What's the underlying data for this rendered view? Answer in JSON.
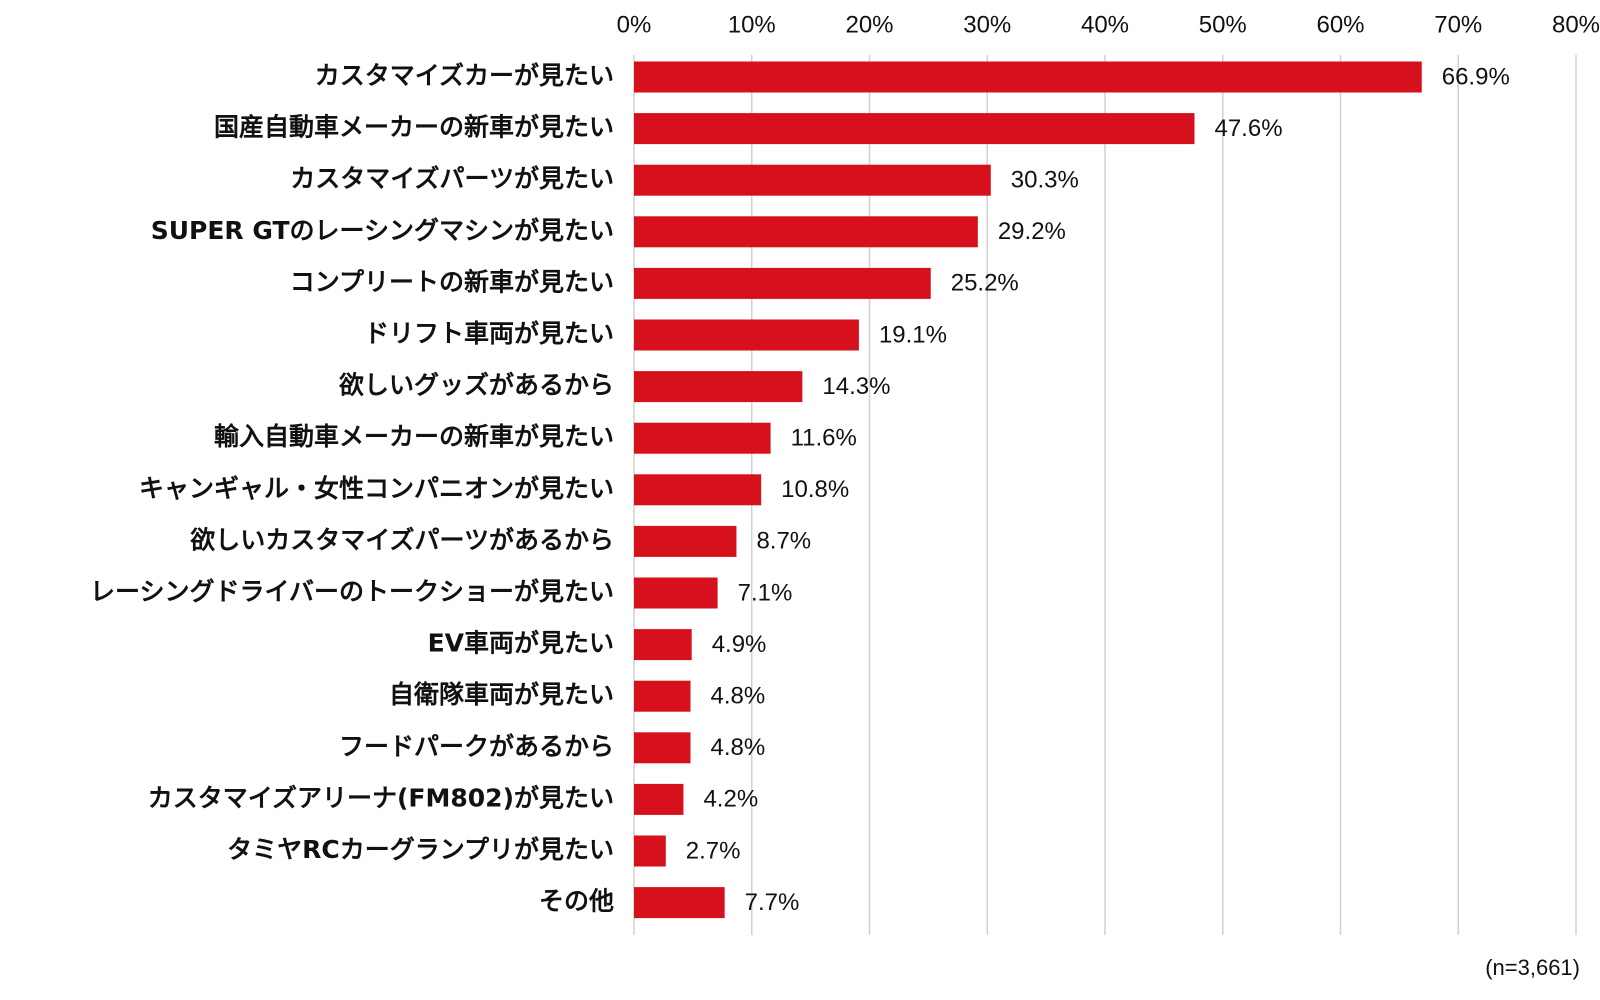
{
  "chart_data": {
    "type": "bar",
    "orientation": "horizontal",
    "title": "",
    "xlabel": "",
    "ylabel": "",
    "categories": [
      "カスタマイズカーが見たい",
      "国産自動車メーカーの新車が見たい",
      "カスタマイズパーツが見たい",
      "SUPER GTのレーシングマシンが見たい",
      "コンプリートの新車が見たい",
      "ドリフト車両が見たい",
      "欲しいグッズがあるから",
      "輸入自動車メーカーの新車が見たい",
      "キャンギャル・女性コンパニオンが見たい",
      "欲しいカスタマイズパーツがあるから",
      "レーシングドライバーのトークショーが見たい",
      "EV車両が見たい",
      "自衛隊車両が見たい",
      "フードパークがあるから",
      "カスタマイズアリーナ(FM802)が見たい",
      "タミヤRCカーグランプリが見たい",
      "その他"
    ],
    "values": [
      66.9,
      47.6,
      30.3,
      29.2,
      25.2,
      19.1,
      14.3,
      11.6,
      10.8,
      8.7,
      7.1,
      4.9,
      4.8,
      4.8,
      4.2,
      2.7,
      7.7
    ],
    "value_labels": [
      "66.9%",
      "47.6%",
      "30.3%",
      "29.2%",
      "25.2%",
      "19.1%",
      "14.3%",
      "11.6%",
      "10.8%",
      "8.7%",
      "7.1%",
      "4.9%",
      "4.8%",
      "4.8%",
      "4.2%",
      "2.7%",
      "7.7%"
    ],
    "xlim": [
      0,
      80
    ],
    "x_ticks": [
      0,
      10,
      20,
      30,
      40,
      50,
      60,
      70,
      80
    ],
    "x_tick_labels": [
      "0%",
      "10%",
      "20%",
      "30%",
      "40%",
      "50%",
      "60%",
      "70%",
      "80%"
    ],
    "axis_position": "top",
    "grid": true,
    "legend": "none",
    "bar_color": "#d7101e",
    "grid_color": "#d0d0d0"
  },
  "note": "(n=3,661)"
}
